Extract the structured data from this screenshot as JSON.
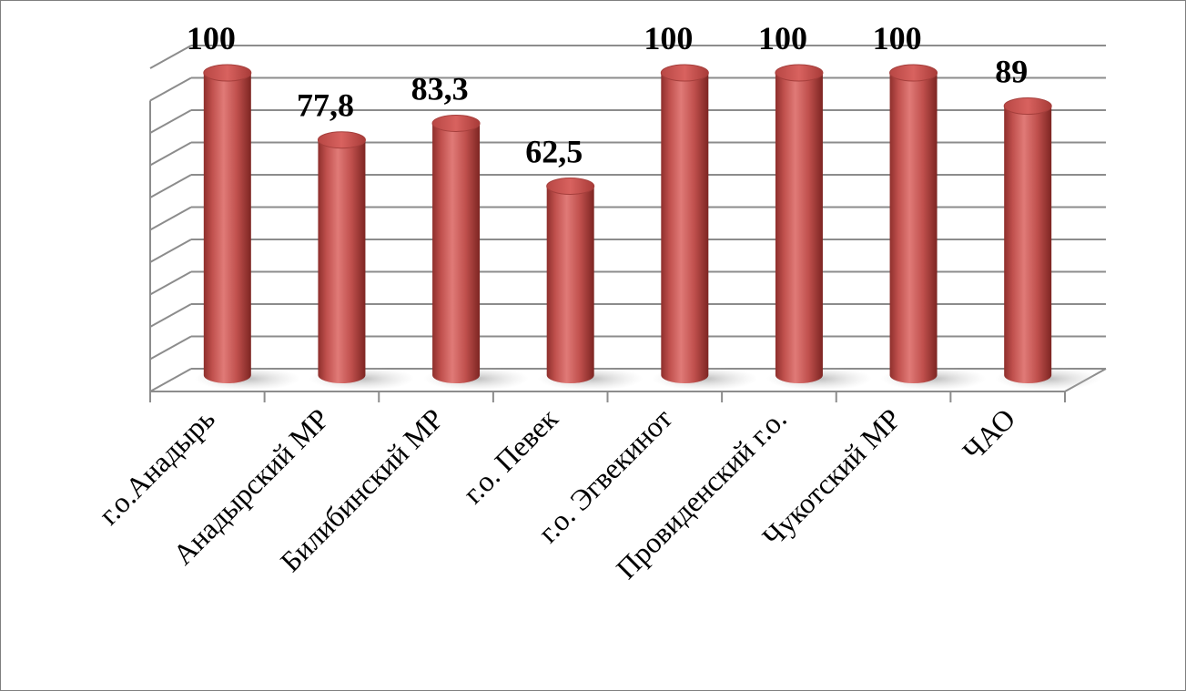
{
  "chart_data": {
    "type": "bar",
    "style": "3d-cylinder",
    "categories": [
      "г.о.Анадырь",
      "Анадырский МР",
      "Билибинский МР",
      "г.о. Певек",
      "г.о. Эгвекинот",
      "Провиденский  г.о.",
      "Чукотский МР",
      "ЧАО"
    ],
    "values": [
      100,
      77.8,
      83.3,
      62.5,
      100,
      100,
      100,
      89
    ],
    "value_labels": [
      "100",
      "77,8",
      "83,3",
      "62,5",
      "100",
      "100",
      "100",
      "89"
    ],
    "ylim": [
      0,
      100
    ],
    "grid": true,
    "legend": "none",
    "bar_color": "#c0504d",
    "title": "",
    "xlabel": "",
    "ylabel": ""
  }
}
